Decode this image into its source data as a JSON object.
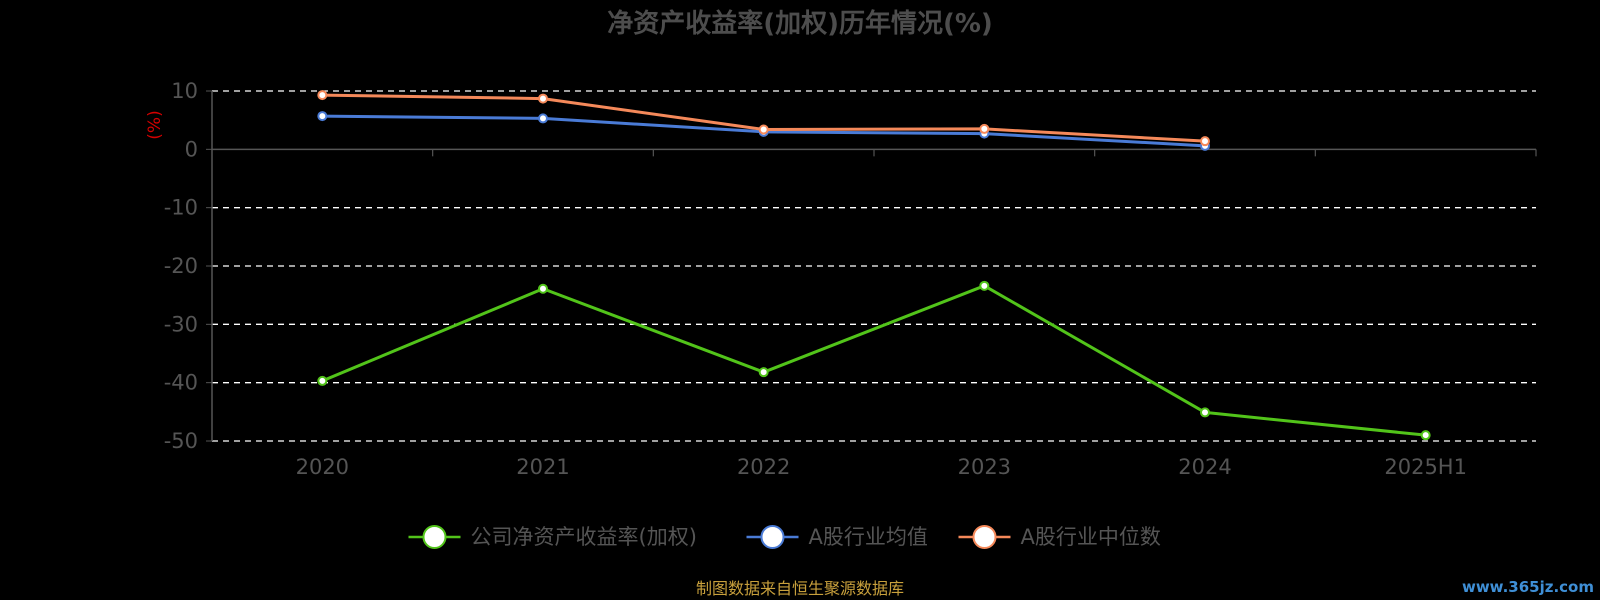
{
  "chart_data": {
    "type": "line",
    "title": "净资产收益率(加权)历年情况(%)",
    "ylabel": "(%)",
    "categories": [
      "2020",
      "2021",
      "2022",
      "2023",
      "2024",
      "2025H1"
    ],
    "ylim": [
      -50,
      10
    ],
    "yticks": [
      10,
      0,
      -10,
      -20,
      -30,
      -40,
      -50
    ],
    "grid": true,
    "legend_position": "bottom",
    "series": [
      {
        "name": "公司净资产收益率(加权)",
        "color": "#52c41a",
        "values": [
          -39.7,
          -23.9,
          -38.2,
          -23.4,
          -45.1,
          -49.0
        ]
      },
      {
        "name": "A股行业均值",
        "color": "#4a7bd6",
        "values": [
          5.7,
          5.3,
          3.0,
          2.7,
          0.6,
          null
        ]
      },
      {
        "name": "A股行业中位数",
        "color": "#f5895a",
        "values": [
          9.3,
          8.7,
          3.4,
          3.5,
          1.4,
          null
        ]
      }
    ]
  },
  "source": "制图数据来自恒生聚源数据库",
  "watermark": "www.365jz.com",
  "colors": {
    "background": "#000000",
    "title": "#4d4d4d",
    "axis": "#555555",
    "tick_label": "#555555",
    "grid": "#ffffff",
    "ylabel": "#d40000",
    "source": "#c8a03c",
    "watermark": "#3f8fd6"
  }
}
